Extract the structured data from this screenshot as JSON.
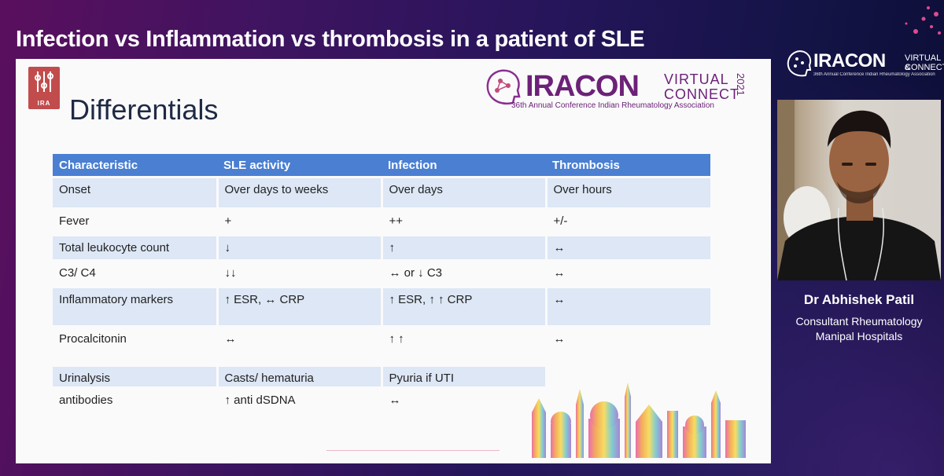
{
  "header": {
    "title": "Infection vs Inflammation vs thrombosis in a patient of SLE"
  },
  "slide": {
    "title": "Differentials",
    "logo_text": "IRA",
    "conference_logo": {
      "word": "IRACON",
      "virtual": "VIRTUAL",
      "connect": "CONNECT",
      "year": "2021",
      "subtitle": "36th Annual Conference Indian Rheumatology Association"
    },
    "table": {
      "headers": [
        "Characteristic",
        "SLE activity",
        "Infection",
        "Thrombosis"
      ],
      "rows": [
        [
          "Onset",
          "Over days to weeks",
          "Over days",
          "Over hours"
        ],
        [
          "Fever",
          "+",
          "++",
          "+/-"
        ],
        [
          "Total leukocyte count",
          "↓",
          "↑",
          "↔"
        ],
        [
          "C3/ C4",
          "↓↓",
          "↔ or ↓ C3",
          "↔"
        ],
        [
          "Inflammatory markers",
          "↑ ESR, ↔ CRP",
          "↑  ESR, ↑ ↑ CRP",
          "↔"
        ],
        [
          "Procalcitonin",
          "↔",
          "↑ ↑",
          "↔"
        ],
        [
          "Urinalysis",
          "Casts/ hematuria",
          "Pyuria if UTI",
          ""
        ],
        [
          "antibodies",
          "↑ anti dSDNA",
          "↔",
          ""
        ]
      ]
    }
  },
  "sidebar": {
    "conference_badge": {
      "word": "IRACON",
      "virtual": "VIRTUAL &",
      "connect": "CONNECT",
      "subtitle": "36th Annual Conference Indian Rheumatology Association"
    },
    "speaker": {
      "name": "Dr Abhishek Patil",
      "role": "Consultant Rheumatology",
      "organization": "Manipal Hospitals"
    }
  },
  "colors": {
    "table_header": "#4a7fd2",
    "table_band": "#dde7f5",
    "brand_purple": "#6d2178",
    "logo_red": "#c24c4c"
  }
}
